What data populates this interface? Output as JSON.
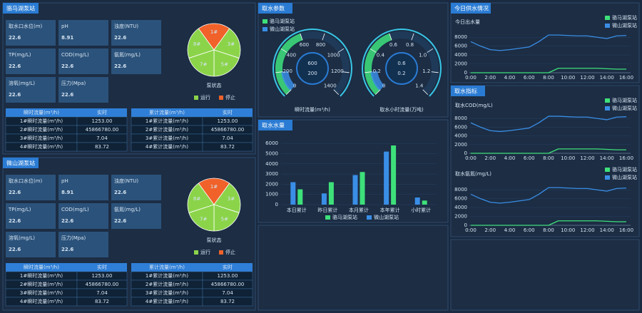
{
  "panels": [
    "取水参数",
    "取水水量",
    "今日供水情况",
    "取水指标"
  ],
  "stations": [
    {
      "name": "骆马湖泵站",
      "metrics": [
        {
          "label": "取水口水位(m)",
          "value": "22.6"
        },
        {
          "label": "pH",
          "value": "8.91"
        },
        {
          "label": "浊度(NTU)",
          "value": "22.6"
        },
        {
          "label": "TP(mg/L)",
          "value": "22.6"
        },
        {
          "label": "COD(mg/L)",
          "value": "22.6"
        },
        {
          "label": "氨氮(mg/L)",
          "value": "22.6"
        },
        {
          "label": "溶氧(mg/L)",
          "value": "22.6"
        },
        {
          "label": "压力(Mpa)",
          "value": "22.6"
        }
      ],
      "pie": {
        "title": "泵状态",
        "labels": [
          "1#",
          "3#",
          "5#",
          "7#",
          "8#"
        ],
        "values": [
          1,
          1,
          1,
          1,
          1
        ],
        "colors": [
          "#f0622a",
          "#8bd44a",
          "#8bd44a",
          "#8bd44a",
          "#8bd44a"
        ],
        "legend": [
          {
            "name": "运行",
            "color": "#8bd44a"
          },
          {
            "name": "停止",
            "color": "#f0622a"
          }
        ]
      },
      "tables": [
        {
          "headers": [
            "瞬时流量(m³/h)",
            "实时"
          ],
          "rows": [
            [
              "1#瞬时流量(m³/h)",
              "1253.00"
            ],
            [
              "2#瞬时流量(m³/h)",
              "45866780.00"
            ],
            [
              "3#瞬时流量(m³/h)",
              "7.04"
            ],
            [
              "4#瞬时流量(m³/h)",
              "83.72"
            ]
          ]
        },
        {
          "headers": [
            "累计流量(m³/h)",
            "实时"
          ],
          "rows": [
            [
              "1#累计流量(m³/h)",
              "1253.00"
            ],
            [
              "2#累计流量(m³/h)",
              "45866780.00"
            ],
            [
              "3#累计流量(m³/h)",
              "7.04"
            ],
            [
              "4#累计流量(m³/h)",
              "83.72"
            ]
          ]
        }
      ]
    },
    {
      "name": "微山湖泵站",
      "metrics": [
        {
          "label": "取水口水位(m)",
          "value": "22.6"
        },
        {
          "label": "pH",
          "value": "8.91"
        },
        {
          "label": "浊度(NTU)",
          "value": "22.6"
        },
        {
          "label": "TP(mg/L)",
          "value": "22.6"
        },
        {
          "label": "COD(mg/L)",
          "value": "22.6"
        },
        {
          "label": "氨氮(mg/L)",
          "value": "22.6"
        },
        {
          "label": "溶氧(mg/L)",
          "value": "22.6"
        },
        {
          "label": "压力(Mpa)",
          "value": "22.6"
        }
      ],
      "pie": {
        "title": "泵状态",
        "labels": [
          "1#",
          "3#",
          "5#",
          "7#",
          "8#"
        ],
        "values": [
          1,
          1,
          1,
          1,
          1
        ],
        "colors": [
          "#f0622a",
          "#8bd44a",
          "#8bd44a",
          "#8bd44a",
          "#8bd44a"
        ],
        "legend": [
          {
            "name": "运行",
            "color": "#8bd44a"
          },
          {
            "name": "停止",
            "color": "#f0622a"
          }
        ]
      },
      "tables": [
        {
          "headers": [
            "瞬时流量(m³/h)",
            "实时"
          ],
          "rows": [
            [
              "1#瞬时流量(m³/h)",
              "1253.00"
            ],
            [
              "2#瞬时流量(m³/h)",
              "45866780.00"
            ],
            [
              "3#瞬时流量(m³/h)",
              "7.04"
            ],
            [
              "4#瞬时流量(m³/h)",
              "83.72"
            ]
          ]
        },
        {
          "headers": [
            "累计流量(m³/h)",
            "实时"
          ],
          "rows": [
            [
              "1#累计流量(m³/h)",
              "1253.00"
            ],
            [
              "2#累计流量(m³/h)",
              "45866780.00"
            ],
            [
              "3#累计流量(m³/h)",
              "7.04"
            ],
            [
              "4#累计流量(m³/h)",
              "83.72"
            ]
          ]
        }
      ]
    }
  ],
  "chart_data": [
    {
      "type": "gauge",
      "series": [
        {
          "name": "骆马湖泵站",
          "color": "#3ee07a"
        },
        {
          "name": "微山湖泵站",
          "color": "#3a8ee6"
        }
      ],
      "dials": [
        {
          "label": "瞬时流量(m³/h)",
          "values": [
            600,
            200
          ],
          "ylim": [
            0,
            1400
          ],
          "yticks": [
            0,
            200,
            400,
            600,
            800,
            1000,
            1200,
            1400
          ]
        },
        {
          "label": "取水小时流量(万吨)",
          "values": [
            0.6,
            0.2
          ],
          "ylim": [
            0,
            1.4
          ],
          "yticks": [
            0,
            0.2,
            0.4,
            0.6,
            0.8,
            {
              "value": 1,
              "label": "1.0"
            },
            1.2,
            1.4
          ]
        }
      ]
    },
    {
      "type": "bar",
      "categories": [
        "本日累计",
        "昨日累计",
        "本月累计",
        "本年累计",
        "小时累计"
      ],
      "series": [
        {
          "name": "骆马湖泵站",
          "color": "#3ee07a",
          "values": [
            1500,
            2200,
            3200,
            5800,
            400
          ]
        },
        {
          "name": "微山湖泵站",
          "color": "#3a8ee6",
          "values": [
            2200,
            1100,
            2900,
            5200,
            700
          ]
        }
      ],
      "ylim": [
        0,
        6500
      ],
      "yticks": [
        0,
        1000,
        2000,
        3000,
        4000,
        5000,
        6000
      ],
      "legend": "bottom"
    },
    {
      "type": "line",
      "title": "今日出水量",
      "categories": [
        "0:00",
        null,
        "2:00",
        null,
        "4:00",
        null,
        "6:00",
        null,
        "8:00",
        null,
        "10:00",
        null,
        "12:00",
        null,
        "14:00",
        null,
        "16:00"
      ],
      "series": [
        {
          "name": "骆马湖泵站",
          "color": "#3ee07a",
          "values": [
            0,
            0,
            0,
            0,
            0,
            0,
            0,
            0,
            0,
            1000,
            1000,
            1000,
            1000,
            1000,
            900,
            800,
            800
          ]
        },
        {
          "name": "微山湖泵站",
          "color": "#3a8ee6",
          "values": [
            7000,
            6000,
            5200,
            5000,
            5200,
            5500,
            5800,
            7000,
            8500,
            8500,
            8400,
            8300,
            8300,
            8000,
            7700,
            8300,
            8400
          ]
        }
      ],
      "ylim": [
        0,
        9000
      ],
      "yticks": [
        0,
        2000,
        4000,
        6000,
        8000
      ],
      "legend": "top-right"
    },
    {
      "type": "line",
      "title": "取水COD(mg/L)",
      "categories": [
        "0:00",
        null,
        "2:00",
        null,
        "4:00",
        null,
        "6:00",
        null,
        "8:00",
        null,
        "10:00",
        null,
        "12:00",
        null,
        "14:00",
        null,
        "16:00"
      ],
      "series": [
        {
          "name": "骆马湖泵站",
          "color": "#3ee07a",
          "values": [
            0,
            0,
            0,
            0,
            0,
            0,
            0,
            0,
            0,
            1000,
            1000,
            1000,
            1000,
            1000,
            900,
            800,
            800
          ]
        },
        {
          "name": "微山湖泵站",
          "color": "#3a8ee6",
          "values": [
            7000,
            6000,
            5200,
            5000,
            5200,
            5500,
            5800,
            7000,
            8500,
            8500,
            8400,
            8300,
            8300,
            8000,
            7700,
            8300,
            8400
          ]
        }
      ],
      "ylim": [
        0,
        9000
      ],
      "yticks": [
        0,
        2000,
        4000,
        6000,
        8000
      ],
      "legend": "top-right"
    },
    {
      "type": "line",
      "title": "取水氨氮(mg/L)",
      "categories": [
        "0:00",
        null,
        "2:00",
        null,
        "4:00",
        null,
        "6:00",
        null,
        "8:00",
        null,
        "10:00",
        null,
        "12:00",
        null,
        "14:00",
        null,
        "16:00"
      ],
      "series": [
        {
          "name": "骆马湖泵站",
          "color": "#3ee07a",
          "values": [
            0,
            0,
            0,
            0,
            0,
            0,
            0,
            0,
            0,
            1000,
            1000,
            1000,
            1000,
            1000,
            900,
            800,
            800
          ]
        },
        {
          "name": "微山湖泵站",
          "color": "#3a8ee6",
          "values": [
            7000,
            6000,
            5200,
            5000,
            5200,
            5500,
            5800,
            7000,
            8500,
            8500,
            8400,
            8300,
            8300,
            8000,
            7700,
            8300,
            8400
          ]
        }
      ],
      "ylim": [
        0,
        9000
      ],
      "yticks": [
        0,
        2000,
        4000,
        6000,
        8000
      ],
      "legend": "top-right"
    }
  ]
}
